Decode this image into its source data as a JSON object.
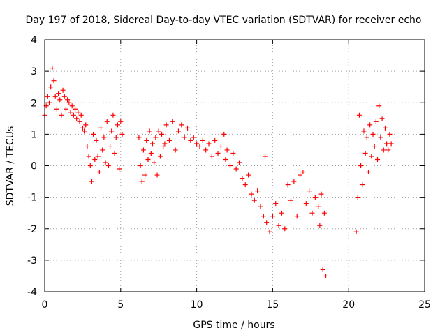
{
  "chart_data": {
    "type": "scatter",
    "title": "Day 197 of 2018, Sidereal Day-to-day VTEC variation (SDTVAR) for receiver echo",
    "xlabel": "GPS time / hours",
    "ylabel": "SDTVAR / TECUs",
    "xlim": [
      0,
      25
    ],
    "ylim": [
      -4,
      4
    ],
    "x_ticks": [
      0,
      5,
      10,
      15,
      20,
      25
    ],
    "y_ticks": [
      -4,
      -3,
      -2,
      -1,
      0,
      1,
      2,
      3,
      4
    ],
    "grid": true,
    "marker": "+",
    "marker_color": "#ff0000",
    "series": [
      {
        "name": "SDTVAR",
        "points": [
          [
            0.0,
            1.6
          ],
          [
            0.1,
            1.9
          ],
          [
            0.2,
            2.2
          ],
          [
            0.3,
            2.0
          ],
          [
            0.4,
            2.5
          ],
          [
            0.5,
            3.1
          ],
          [
            0.6,
            2.7
          ],
          [
            0.7,
            2.2
          ],
          [
            0.8,
            1.8
          ],
          [
            0.9,
            2.3
          ],
          [
            1.0,
            2.1
          ],
          [
            1.1,
            1.6
          ],
          [
            1.2,
            2.4
          ],
          [
            1.3,
            2.2
          ],
          [
            1.4,
            1.8
          ],
          [
            1.5,
            2.1
          ],
          [
            1.6,
            2.0
          ],
          [
            1.7,
            1.7
          ],
          [
            1.8,
            1.9
          ],
          [
            1.9,
            1.6
          ],
          [
            2.0,
            1.8
          ],
          [
            2.1,
            1.5
          ],
          [
            2.2,
            1.7
          ],
          [
            2.3,
            1.4
          ],
          [
            2.4,
            1.6
          ],
          [
            2.5,
            1.2
          ],
          [
            2.6,
            1.1
          ],
          [
            2.7,
            1.3
          ],
          [
            2.8,
            0.6
          ],
          [
            2.9,
            0.3
          ],
          [
            3.0,
            0.0
          ],
          [
            3.1,
            -0.5
          ],
          [
            3.2,
            1.0
          ],
          [
            3.3,
            0.2
          ],
          [
            3.4,
            0.8
          ],
          [
            3.5,
            0.3
          ],
          [
            3.6,
            -0.2
          ],
          [
            3.7,
            1.2
          ],
          [
            3.8,
            0.5
          ],
          [
            3.9,
            0.9
          ],
          [
            4.0,
            0.1
          ],
          [
            4.1,
            1.4
          ],
          [
            4.2,
            0.0
          ],
          [
            4.3,
            0.6
          ],
          [
            4.4,
            1.1
          ],
          [
            4.5,
            1.6
          ],
          [
            4.6,
            0.4
          ],
          [
            4.7,
            0.9
          ],
          [
            4.8,
            1.3
          ],
          [
            4.9,
            -0.1
          ],
          [
            5.0,
            1.4
          ],
          [
            5.1,
            1.0
          ],
          [
            6.2,
            0.9
          ],
          [
            6.3,
            0.0
          ],
          [
            6.4,
            -0.5
          ],
          [
            6.5,
            0.5
          ],
          [
            6.6,
            -0.3
          ],
          [
            6.7,
            0.8
          ],
          [
            6.8,
            0.2
          ],
          [
            6.9,
            1.1
          ],
          [
            7.0,
            0.4
          ],
          [
            7.1,
            0.7
          ],
          [
            7.2,
            0.1
          ],
          [
            7.3,
            0.9
          ],
          [
            7.4,
            -0.3
          ],
          [
            7.5,
            1.1
          ],
          [
            7.6,
            0.3
          ],
          [
            7.7,
            1.0
          ],
          [
            7.8,
            0.6
          ],
          [
            7.9,
            0.7
          ],
          [
            8.0,
            1.3
          ],
          [
            8.2,
            0.8
          ],
          [
            8.4,
            1.4
          ],
          [
            8.6,
            0.5
          ],
          [
            8.8,
            1.1
          ],
          [
            9.0,
            1.3
          ],
          [
            9.2,
            0.9
          ],
          [
            9.4,
            1.2
          ],
          [
            9.6,
            0.8
          ],
          [
            9.8,
            0.9
          ],
          [
            10.0,
            0.7
          ],
          [
            10.2,
            0.6
          ],
          [
            10.4,
            0.8
          ],
          [
            10.6,
            0.5
          ],
          [
            10.8,
            0.7
          ],
          [
            11.0,
            0.3
          ],
          [
            11.2,
            0.8
          ],
          [
            11.4,
            0.4
          ],
          [
            11.6,
            0.6
          ],
          [
            11.8,
            1.0
          ],
          [
            11.9,
            0.2
          ],
          [
            12.0,
            0.5
          ],
          [
            12.2,
            0.0
          ],
          [
            12.4,
            0.4
          ],
          [
            12.6,
            -0.1
          ],
          [
            12.8,
            0.1
          ],
          [
            13.0,
            -0.4
          ],
          [
            13.2,
            -0.6
          ],
          [
            13.4,
            -0.3
          ],
          [
            13.6,
            -0.9
          ],
          [
            13.8,
            -1.1
          ],
          [
            14.0,
            -0.8
          ],
          [
            14.2,
            -1.3
          ],
          [
            14.4,
            -1.6
          ],
          [
            14.5,
            0.3
          ],
          [
            14.6,
            -1.8
          ],
          [
            14.8,
            -2.1
          ],
          [
            15.0,
            -1.6
          ],
          [
            15.2,
            -1.2
          ],
          [
            15.4,
            -1.9
          ],
          [
            15.6,
            -1.5
          ],
          [
            15.8,
            -2.0
          ],
          [
            16.0,
            -0.6
          ],
          [
            16.2,
            -1.1
          ],
          [
            16.4,
            -0.5
          ],
          [
            16.6,
            -1.6
          ],
          [
            16.8,
            -0.3
          ],
          [
            17.0,
            -0.2
          ],
          [
            17.2,
            -1.2
          ],
          [
            17.4,
            -0.8
          ],
          [
            17.6,
            -1.5
          ],
          [
            17.8,
            -1.0
          ],
          [
            18.0,
            -1.3
          ],
          [
            18.1,
            -1.9
          ],
          [
            18.2,
            -0.9
          ],
          [
            18.3,
            -3.3
          ],
          [
            18.4,
            -1.5
          ],
          [
            18.5,
            -3.5
          ],
          [
            20.5,
            -2.1
          ],
          [
            20.6,
            -1.0
          ],
          [
            20.7,
            1.6
          ],
          [
            20.8,
            0.0
          ],
          [
            20.9,
            -0.6
          ],
          [
            21.0,
            1.1
          ],
          [
            21.1,
            0.4
          ],
          [
            21.2,
            0.9
          ],
          [
            21.3,
            -0.2
          ],
          [
            21.4,
            1.3
          ],
          [
            21.5,
            0.3
          ],
          [
            21.6,
            1.0
          ],
          [
            21.7,
            0.6
          ],
          [
            21.8,
            1.4
          ],
          [
            21.9,
            0.2
          ],
          [
            22.0,
            1.9
          ],
          [
            22.1,
            0.9
          ],
          [
            22.2,
            1.5
          ],
          [
            22.3,
            0.5
          ],
          [
            22.4,
            1.2
          ],
          [
            22.5,
            0.7
          ],
          [
            22.6,
            0.5
          ],
          [
            22.7,
            1.0
          ],
          [
            22.8,
            0.7
          ]
        ]
      }
    ]
  }
}
